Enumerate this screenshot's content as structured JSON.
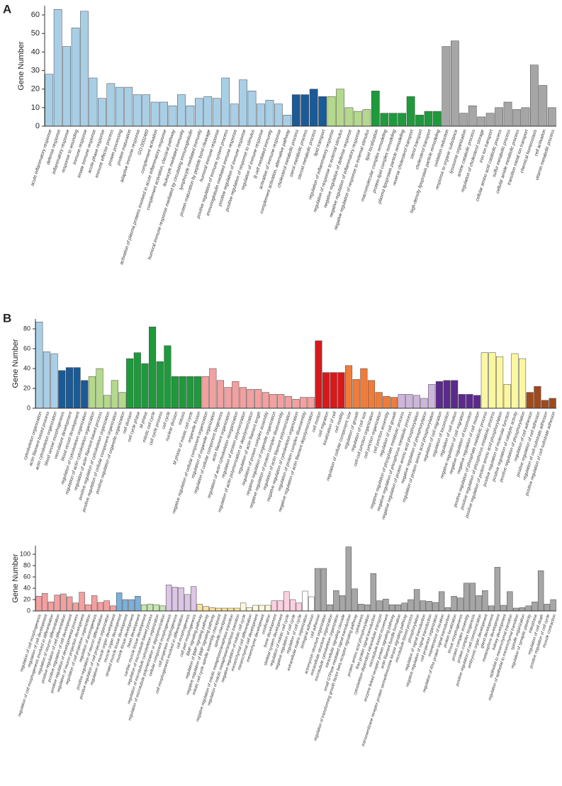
{
  "chart_data": [
    {
      "type": "bar",
      "panel": "A",
      "y_label": "Gene Number",
      "ylim": [
        0,
        65
      ],
      "yticks": [
        0,
        10,
        20,
        30,
        40,
        50,
        60
      ],
      "categories": [
        "acute inflammatory response",
        "defense response",
        "inflammatory response",
        "response to wounding",
        "immune response",
        "innate immune response",
        "acute-phase response",
        "immune effector process",
        "protein processing",
        "protein maturation",
        "adaptive immune response",
        "GO:0002460",
        "complement activation",
        "activation of plasma proteins involved in acute inflammatory response",
        "complement activation, classical pathway",
        "leukocyte mediated immunity",
        "humoral immune response mediated by circulating immunoglobulin",
        "lymphocyte mediated immunity",
        "protein maturation by peptide bond cleavage",
        "humoral immune response",
        "positive regulation of immune system process",
        "immunoglobulin mediated immune response",
        "positive regulation of immune response",
        "positive regulation of response to stimulus",
        "regulation of immune response",
        "B cell mediated immunity",
        "activation of immune response",
        "complement activation, alternative pathway",
        "cholesterol metabolic process",
        "sterol metabolic process",
        "steroid metabolic process",
        "lipid transport",
        "regulation of inflammatory response",
        "regulation of response to external stimulus",
        "negative regulation of defense response",
        "negative regulation of inflammatory response",
        "negative regulation of response to external stimulus",
        "lipid localization",
        "macromolecular complex remodeling",
        "protein-lipid complex remodeling",
        "plasma lipoprotein particle remodeling",
        "reverse cholesterol transport",
        "sterol transport",
        "cholesterol transport",
        "high-density lipoprotein particle remodeling",
        "oxidation reduction",
        "response to organic substance",
        "lysosome organization",
        "amine catabolic process",
        "regulation of cholesterol storage",
        "iron ion transport",
        "cellular amino acid catabolic process",
        "sulfur metabolic process",
        "cellular amide metabolic process",
        "transition metal ion transport",
        "chemical homeostasis",
        "cell activation",
        "vitamin metabolic process"
      ],
      "values": [
        28,
        63,
        43,
        53,
        62,
        26,
        15,
        23,
        21,
        21,
        17,
        17,
        13,
        13,
        11,
        17,
        11,
        15,
        16,
        15,
        26,
        12,
        25,
        19,
        12,
        14,
        12,
        6,
        17,
        17,
        20,
        16,
        16,
        20,
        10,
        8,
        9,
        19,
        7,
        7,
        7,
        16,
        6,
        8,
        8,
        43,
        46,
        7,
        11,
        5,
        7,
        10,
        13,
        9,
        10,
        33,
        22,
        10
      ],
      "colors": [
        "#a9cfe6",
        "#a9cfe6",
        "#a9cfe6",
        "#a9cfe6",
        "#a9cfe6",
        "#a9cfe6",
        "#a9cfe6",
        "#a9cfe6",
        "#a9cfe6",
        "#a9cfe6",
        "#a9cfe6",
        "#a9cfe6",
        "#a9cfe6",
        "#a9cfe6",
        "#a9cfe6",
        "#a9cfe6",
        "#a9cfe6",
        "#a9cfe6",
        "#a9cfe6",
        "#a9cfe6",
        "#a9cfe6",
        "#a9cfe6",
        "#a9cfe6",
        "#a9cfe6",
        "#a9cfe6",
        "#a9cfe6",
        "#a9cfe6",
        "#a9cfe6",
        "#1a5a96",
        "#1a5a96",
        "#1a5a96",
        "#1a5a96",
        "#b5d98c",
        "#b5d98c",
        "#b5d98c",
        "#b5d98c",
        "#b5d98c",
        "#1e9a3c",
        "#1e9a3c",
        "#1e9a3c",
        "#1e9a3c",
        "#1e9a3c",
        "#1e9a3c",
        "#1e9a3c",
        "#1e9a3c",
        "#a6a6a6",
        "#a6a6a6",
        "#a6a6a6",
        "#a6a6a6",
        "#a6a6a6",
        "#a6a6a6",
        "#a6a6a6",
        "#a6a6a6",
        "#a6a6a6",
        "#a6a6a6",
        "#a6a6a6",
        "#a6a6a6",
        "#a6a6a6"
      ]
    },
    {
      "type": "bar",
      "panel": "B",
      "y_label": "Gene Number",
      "ylim": [
        0,
        90
      ],
      "yticks": [
        0,
        20,
        40,
        60,
        80
      ],
      "categories": [
        "cytoskeleton organization",
        "actin filament-based process",
        "actin cytoskeleton organization",
        "blood vessel morphogenesis",
        "vasculature development",
        "blood vessel development",
        "regulation of cytoskeleton organization",
        "regulation of actin cytoskeleton organization",
        "regulation of actin filament-based process",
        "positive regulation of cytoskeleton organization",
        "positive regulation of cellular component organization",
        "positive regulation of organelle organization",
        "cell division",
        "cell cycle phase",
        "M phase",
        "mitotic cell cycle",
        "cell cycle process",
        "cell cycle",
        "nuclear division",
        "mitosis",
        "M phase of mitotic cell cycle",
        "organelle fission",
        "negative regulation of cellular component organization",
        "regulation of organelle organization",
        "regulation of cellular component biogenesis",
        "actin filament organization",
        "regulation of actin cytoskeleton reorganization",
        "regulation of protein polymerization",
        "regulation of actin polymerization or depolymerization",
        "regulation of actin filament length",
        "regulation of protein complex assembly",
        "negative regulation of organelle organization",
        "negative regulation of protein complex disassembly",
        "regulation of actin filament polymerization",
        "negative regulation of cytoskeleton organization",
        "regulation of protein complex disassembly",
        "negative regulation of actin filament depolymerization",
        "cell motion",
        "cell migration",
        "localization of cell",
        "cell motility",
        "regulation of cellular component size",
        "regulation of growth",
        "regulation of cell size",
        "cell-cell junction organization",
        "cell junction organization",
        "cell junction assembly",
        "regulation of cell growth",
        "negative regulation of phosphate metabolic process",
        "negative regulation of phosphorus metabolic process",
        "negative regulation of protein amino acid phosphorylation",
        "negative regulation of phosphorylation",
        "regulation of protein amino acid phosphorylation",
        "regulation of cell migration",
        "regulation of locomotion",
        "regulation of cell motion",
        "negative regulation of cell migration",
        "negative regulation of locomotion",
        "negative regulation of cell motion",
        "positive regulation of phosphate metabolic process",
        "positive regulation of phosphorus metabolic process",
        "positive regulation of protein amino acid phosphorylation",
        "positive regulation of molecular function",
        "positive regulation of catalytic activity",
        "positive regulation of phosphorylation",
        "regulation of cell adhesion",
        "positive regulation of cell adhesion",
        "regulation of cell-substrate adhesion",
        "positive regulation of cell-substrate adhesion"
      ],
      "values": [
        87,
        57,
        55,
        38,
        41,
        41,
        28,
        32,
        40,
        13,
        28,
        16,
        50,
        56,
        45,
        82,
        47,
        63,
        32,
        32,
        32,
        32,
        32,
        40,
        28,
        21,
        27,
        21,
        19,
        19,
        16,
        14,
        14,
        12,
        9,
        11,
        11,
        68,
        36,
        36,
        36,
        43,
        29,
        40,
        28,
        16,
        12,
        11,
        14,
        14,
        13,
        10,
        24,
        27,
        28,
        28,
        14,
        14,
        13,
        56,
        56,
        52,
        24,
        55,
        50,
        16,
        22,
        8,
        10
      ],
      "colors": [
        "#a9cfe6",
        "#a9cfe6",
        "#a9cfe6",
        "#1a5a96",
        "#1a5a96",
        "#1a5a96",
        "#1a5a96",
        "#b5d98c",
        "#b5d98c",
        "#b5d98c",
        "#b5d98c",
        "#b5d98c",
        "#1e9a3c",
        "#1e9a3c",
        "#1e9a3c",
        "#1e9a3c",
        "#1e9a3c",
        "#1e9a3c",
        "#1e9a3c",
        "#1e9a3c",
        "#1e9a3c",
        "#1e9a3c",
        "#f2a0a0",
        "#f2a0a0",
        "#f2a0a0",
        "#f2a0a0",
        "#f2a0a0",
        "#f2a0a0",
        "#f2a0a0",
        "#f2a0a0",
        "#f2a0a0",
        "#f2a0a0",
        "#f2a0a0",
        "#f2a0a0",
        "#f2a0a0",
        "#f2a0a0",
        "#f2a0a0",
        "#d7191c",
        "#d7191c",
        "#d7191c",
        "#d7191c",
        "#f07c3a",
        "#f07c3a",
        "#f07c3a",
        "#f07c3a",
        "#f07c3a",
        "#f07c3a",
        "#f07c3a",
        "#cdb5dc",
        "#cdb5dc",
        "#cdb5dc",
        "#cdb5dc",
        "#cdb5dc",
        "#5b2a8c",
        "#5b2a8c",
        "#5b2a8c",
        "#5b2a8c",
        "#5b2a8c",
        "#5b2a8c",
        "#fbf7a0",
        "#fbf7a0",
        "#fbf7a0",
        "#fbf7a0",
        "#fbf7a0",
        "#fbf7a0",
        "#9e4a1e",
        "#9e4a1e",
        "#9e4a1e",
        "#9e4a1e"
      ]
    },
    {
      "type": "bar",
      "y_label": "Gene Number",
      "ylim": [
        0,
        115
      ],
      "yticks": [
        0,
        20,
        40,
        60,
        80,
        100
      ],
      "categories": [
        "regulation of cell morphogenesis",
        "regulation of cell development",
        "regulation of cell morphogenesis involved in differentiation",
        "regulation of neuron differentiation",
        "positive regulation of cell differentiation",
        "positive regulation of cell development",
        "positive regulation of developmental process",
        "regulation of neuron projection development",
        "regulation of cell projection organization",
        "regulation of axonogenesis",
        "positive regulation of neuron differentiation",
        "positive regulation of cell projection organization",
        "regulation of muscle organ development",
        "muscle organ development",
        "striated muscle tissue development",
        "muscle tissue development",
        "heart development",
        "cardiac muscle tissue development",
        "regulation of microtubule-based process",
        "regulation of microtubule cytoskeleton organization",
        "regulation of microtubule polymerization or depolymerization",
        "cellular component morphogenesis",
        "cell projection morphogenesis",
        "cell morphogenesis involved in differentiation",
        "cell morphogenesis",
        "cell part morphogenesis",
        "BMP signaling pathway",
        "regulation of BMP signaling pathway",
        "negative regulation of BMP signaling pathway",
        "mitotic cell cycle spindle assembly checkpoint",
        "spindle checkpoint",
        "negative regulation of mitotic metaphase/anaphase transition",
        "regulation of mitotic metaphase/anaphase transition",
        "negative regulation of mitotic cell cycle",
        "mesenchymal cell differentiation",
        "mesenchymal cell development",
        "mesenchyme development",
        "ossification",
        "bone development",
        "skeletal system development",
        "regulation of mitotic cell cycle",
        "negative regulation of cell cycle",
        "regulation of cell cycle",
        "extracellular matrix organization",
        "biological adhesion",
        "cell adhesion",
        "actomyosin structure organization",
        "extracellular structure organization",
        "microtubule cytoskeleton organization",
        "intracellular signaling cascade",
        "small GTPase mediated signal transduction",
        "regulation of transforming growth factor beta receptor signaling pathway",
        "cytokinesis",
        "protein amino acid phosphorylation",
        "Ras protein signal transduction",
        "cytoskeleton-dependent intracellular transport",
        "microtubule-based movement",
        "enzyme linked receptor protein signaling pathway",
        "actin filament bundle formation",
        "transmembrane receptor protein serine/threonine kinase signaling pathway",
        "microtubule-based process",
        "phosphorylation",
        "regulation of signal transduction",
        "negative regulation of signal transduction",
        "cell projection organization",
        "maintenance of location",
        "regulation of Rho protein signal transduction",
        "protein localization",
        "tissue morphogenesis",
        "protein complex assembly",
        "protein complex biogenesis",
        "positive regulation of cell communication",
        "embryonic organ development",
        "gland development",
        "metanephros development",
        "kidney development",
        "epithelial to mesenchymal transition",
        "regulation of epithelial to mesenchymal transition",
        "spindle organization",
        "regulation of synaptic plasticity",
        "interphase",
        "regulation of cell death",
        "positive regulation of cell cycle",
        "muscle contraction"
      ],
      "values": [
        26,
        31,
        16,
        28,
        30,
        25,
        14,
        33,
        11,
        27,
        15,
        18,
        9,
        32,
        20,
        20,
        26,
        11,
        12,
        11,
        9,
        46,
        42,
        41,
        29,
        43,
        12,
        8,
        6,
        5,
        5,
        5,
        5,
        14,
        6,
        10,
        10,
        10,
        18,
        18,
        34,
        20,
        14,
        35,
        25,
        75,
        75,
        11,
        36,
        27,
        113,
        39,
        12,
        11,
        66,
        18,
        21,
        11,
        11,
        14,
        20,
        38,
        18,
        17,
        15,
        34,
        6,
        26,
        23,
        49,
        49,
        27,
        36,
        9,
        77,
        10,
        34,
        5,
        6,
        9,
        16,
        71,
        12,
        20
      ],
      "colors": [
        "#f2a0a0",
        "#f2a0a0",
        "#f2a0a0",
        "#f2a0a0",
        "#f2a0a0",
        "#f2a0a0",
        "#f2a0a0",
        "#f2a0a0",
        "#f2a0a0",
        "#f2a0a0",
        "#f2a0a0",
        "#f2a0a0",
        "#f2a0a0",
        "#7ab0dc",
        "#7ab0dc",
        "#7ab0dc",
        "#7ab0dc",
        "#c6e5b0",
        "#c6e5b0",
        "#c6e5b0",
        "#c6e5b0",
        "#dcc5e6",
        "#dcc5e6",
        "#dcc5e6",
        "#dcc5e6",
        "#dcc5e6",
        "#fde3a0",
        "#fde3a0",
        "#fde3a0",
        "#fde3a0",
        "#fde3a0",
        "#fde3a0",
        "#fde3a0",
        "#fff8d8",
        "#fff8d8",
        "#fff8d8",
        "#fff8d8",
        "#fff8d8",
        "#fbd0e0",
        "#fbd0e0",
        "#fbd0e0",
        "#fbd0e0",
        "#fbd0e0",
        "#ffffff",
        "#ffffff",
        "#a6a6a6",
        "#a6a6a6",
        "#a6a6a6",
        "#a6a6a6",
        "#a6a6a6",
        "#a6a6a6",
        "#a6a6a6",
        "#a6a6a6",
        "#a6a6a6",
        "#a6a6a6",
        "#a6a6a6",
        "#a6a6a6",
        "#a6a6a6",
        "#a6a6a6",
        "#a6a6a6",
        "#a6a6a6",
        "#a6a6a6",
        "#a6a6a6",
        "#a6a6a6",
        "#a6a6a6",
        "#a6a6a6",
        "#a6a6a6",
        "#a6a6a6",
        "#a6a6a6",
        "#a6a6a6",
        "#a6a6a6",
        "#a6a6a6",
        "#a6a6a6",
        "#a6a6a6",
        "#a6a6a6",
        "#a6a6a6",
        "#a6a6a6",
        "#a6a6a6",
        "#a6a6a6",
        "#a6a6a6",
        "#a6a6a6",
        "#a6a6a6",
        "#a6a6a6",
        "#a6a6a6"
      ]
    }
  ]
}
